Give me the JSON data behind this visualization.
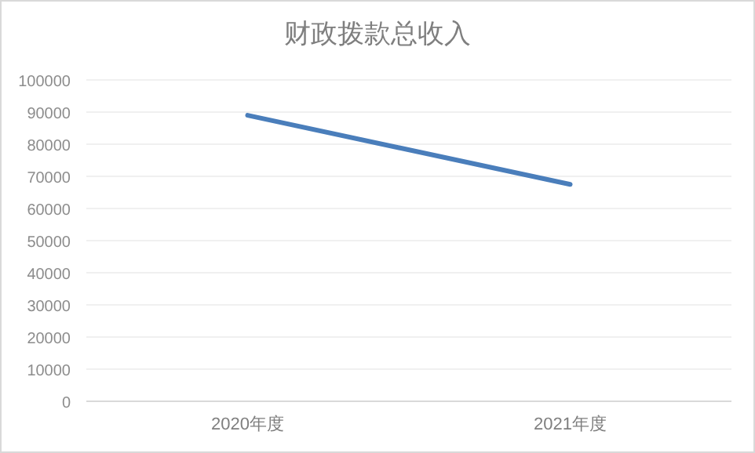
{
  "chart_data": {
    "type": "line",
    "title": "财政拨款总收入",
    "categories": [
      "2020年度",
      "2021年度"
    ],
    "series": [
      {
        "color": "#4a7ebb",
        "values": [
          89000,
          67500
        ]
      }
    ],
    "ylim": [
      0,
      100000
    ],
    "yticks": [
      0,
      10000,
      20000,
      30000,
      40000,
      50000,
      60000,
      70000,
      80000,
      90000,
      100000
    ],
    "grid": "y",
    "marker": "none",
    "line_style": "solid"
  }
}
